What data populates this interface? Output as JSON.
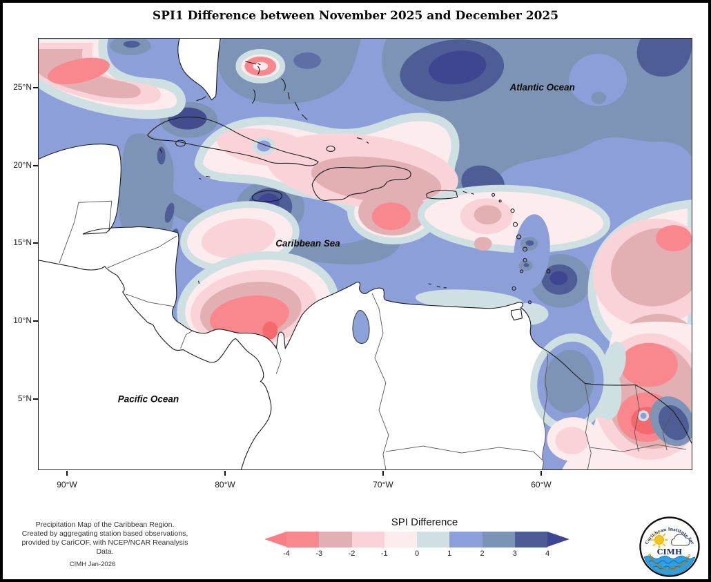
{
  "title": "SPI1 Difference between November 2025 and December 2025",
  "map": {
    "ocean_labels": {
      "atlantic": "Atlantic Ocean",
      "caribbean": "Caribbean Sea",
      "pacific": "Pacific Ocean"
    },
    "y_tick_labels": [
      "25°N",
      "20°N",
      "15°N",
      "10°N",
      "5°N"
    ],
    "x_tick_labels": [
      "90°W",
      "80°W",
      "70°W",
      "60°W"
    ]
  },
  "credits": {
    "line1": "Precipitation Map of the Caribbean Region.",
    "line2": "Created by aggregating station based observations,",
    "line3": "provided by CariCOF, with NCEP/NCAR Reanalysis Data.",
    "stamp": "CIMH Jan-2026"
  },
  "colorbar": {
    "title": "SPI Difference",
    "tick_labels": [
      "-4",
      "-3",
      "-2",
      "-1",
      "0",
      "1",
      "2",
      "3",
      "4"
    ],
    "segment_colors": [
      "#f8888d",
      "#e2afb3",
      "#f9d3d8",
      "#fdecee",
      "#cfdfe2",
      "#8c9fda",
      "#7b93b4",
      "#4d5c95"
    ],
    "left_arrow_color": "#f87f84",
    "right_arrow_color": "#3e4594"
  },
  "logo": {
    "acronym": "CIMH",
    "arc_top": "Caribbean Institute for",
    "arc_bottom": "Meteorology and Hydrology"
  }
}
